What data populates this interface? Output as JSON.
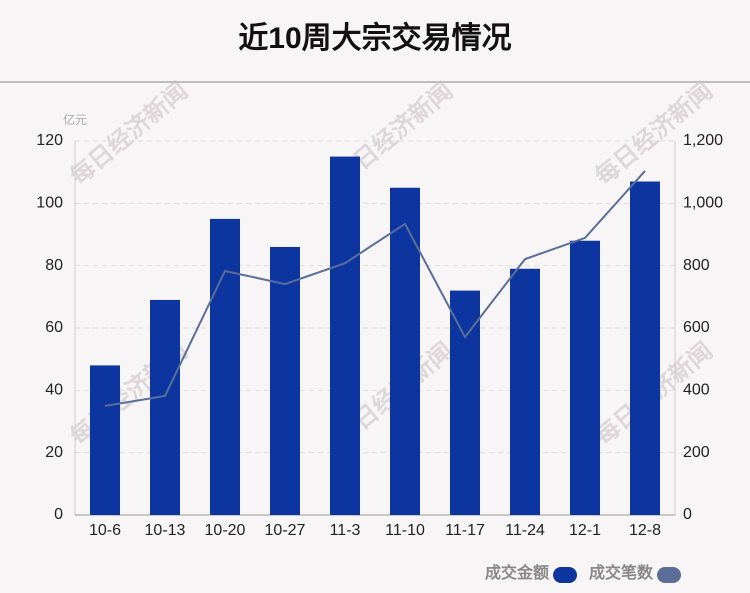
{
  "chart_data": {
    "type": "bar-line",
    "title": "近10周大宗交易情况",
    "y_unit": "亿元",
    "watermark": "每日经济新闻",
    "categories": [
      "10-6",
      "10-13",
      "10-20",
      "10-27",
      "11-3",
      "11-10",
      "11-17",
      "11-24",
      "12-1",
      "12-8"
    ],
    "series": [
      {
        "name": "成交金额",
        "type": "bar",
        "color": "#0d35a0",
        "values": [
          48,
          69,
          95,
          86,
          115,
          105,
          72,
          79,
          88,
          107
        ]
      },
      {
        "name": "成交笔数",
        "type": "line",
        "axis": "y2",
        "color": "#5a6e99",
        "values": [
          350,
          382,
          783,
          741,
          808,
          934,
          571,
          821,
          889,
          1104
        ]
      }
    ],
    "ylim": [
      0,
      120
    ],
    "yticks": [
      0,
      20,
      40,
      60,
      80,
      100,
      120
    ],
    "y2lim": [
      0,
      1200
    ],
    "y2ticks": [
      0,
      200,
      400,
      600,
      800,
      {
        "value": 1000,
        "label": "1,000"
      },
      {
        "value": 1200,
        "label": "1,200"
      }
    ],
    "grid": true
  }
}
